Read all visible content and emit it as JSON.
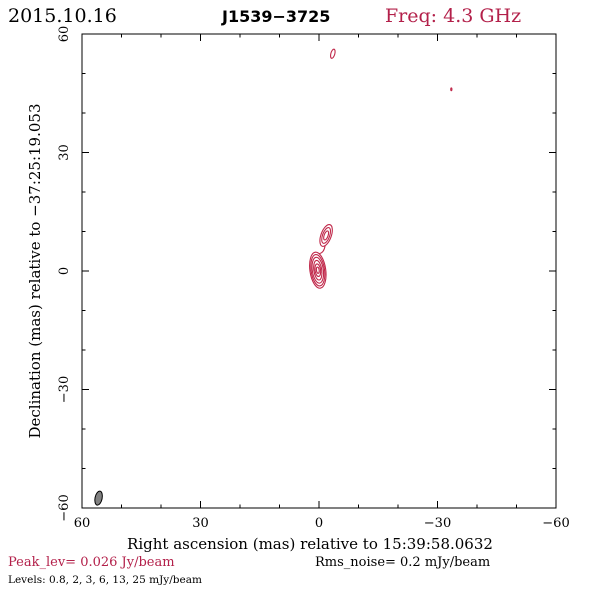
{
  "chart_data": {
    "type": "contour",
    "title_date": "2015.10.16",
    "title_source": "J1539−3725",
    "title_freq": "Freq: 4.3 GHz",
    "xlabel": "Right ascension (mas) relative to 15:39:58.0632",
    "ylabel": "Declination (mas) relative to −37:25:19.053",
    "xlim": [
      60,
      -60
    ],
    "ylim": [
      -60,
      60
    ],
    "x_ticks": [
      60,
      30,
      0,
      -30,
      -60
    ],
    "x_tick_labels": [
      "60",
      "30",
      "0",
      "−30",
      "−60"
    ],
    "y_ticks": [
      -60,
      -30,
      0,
      30,
      60
    ],
    "y_tick_labels": [
      "−60",
      "−30",
      "0",
      "30",
      "60"
    ],
    "peak_text": "Peak_lev=  0.026 Jy/beam",
    "rms_text": "Rms_noise=   0.2 mJy/beam",
    "levels_text": "Levels: 0.8,    2,    3,    6,   13,   25  mJy/beam",
    "levels": [
      0.8,
      2,
      3,
      6,
      13,
      25
    ],
    "colors": {
      "contour": "#c0284a",
      "beam": "#808080",
      "freq": "#b3204a"
    },
    "components": [
      {
        "name": "core",
        "x": 0.3,
        "y": 0.2,
        "contours": [
          {
            "rx": 2.0,
            "ry": 4.6,
            "rot": -8
          },
          {
            "rx": 1.7,
            "ry": 4.0,
            "rot": -8
          },
          {
            "rx": 1.4,
            "ry": 3.3,
            "rot": -8
          },
          {
            "rx": 1.0,
            "ry": 2.5,
            "rot": -8
          },
          {
            "rx": 0.7,
            "ry": 1.6,
            "rot": -8
          },
          {
            "rx": 0.35,
            "ry": 0.8,
            "rot": -8
          }
        ]
      },
      {
        "name": "jet-knot",
        "x": -1.8,
        "y": 9.0,
        "contours": [
          {
            "rx": 1.3,
            "ry": 2.9,
            "rot": 20
          },
          {
            "rx": 0.9,
            "ry": 2.1,
            "rot": 20
          },
          {
            "rx": 0.5,
            "ry": 1.2,
            "rot": 20
          }
        ]
      },
      {
        "name": "north-blob",
        "x": -3.5,
        "y": 55.0,
        "contours": [
          {
            "rx": 0.5,
            "ry": 1.2,
            "rot": 15
          }
        ]
      },
      {
        "name": "noise-spot",
        "x": -33.5,
        "y": 46.0,
        "contours": [
          {
            "rx": 0.12,
            "ry": 0.35,
            "rot": 0
          }
        ]
      }
    ],
    "beam": {
      "x": 55.8,
      "y": -57.5,
      "rx": 0.9,
      "ry": 1.8,
      "rot": 12
    }
  }
}
